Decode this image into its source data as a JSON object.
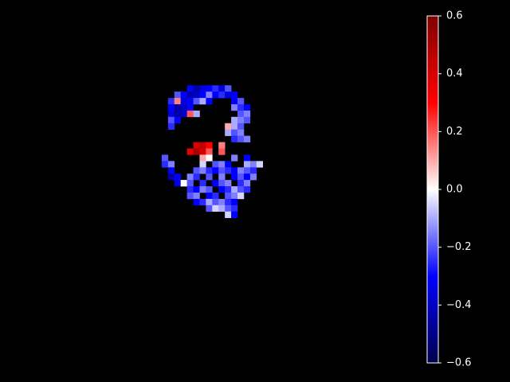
{
  "chart_data": {
    "type": "heatmap",
    "xlim": [
      0,
      55
    ],
    "ylim": [
      0,
      55
    ],
    "clim": [
      -0.6,
      0.6
    ],
    "cticks": [
      {
        "value": -0.6,
        "label": "−0.6"
      },
      {
        "value": -0.4,
        "label": "−0.4"
      },
      {
        "value": -0.2,
        "label": "−0.2"
      },
      {
        "value": 0,
        "label": "0.0"
      },
      0.2,
      0.4,
      0.6
    ],
    "cells": [
      {
        "x": 19,
        "y": 11,
        "value": -0.3
      },
      {
        "x": 20,
        "y": 11,
        "value": -0.45
      },
      {
        "x": 21,
        "y": 11,
        "value": -0.35
      },
      {
        "x": 22,
        "y": 11,
        "value": -0.3
      },
      {
        "x": 23,
        "y": 11,
        "value": -0.25
      },
      {
        "x": 24,
        "y": 11,
        "value": -0.35
      },
      {
        "x": 25,
        "y": 11,
        "value": -0.2
      },
      {
        "x": 17,
        "y": 12,
        "value": -0.2
      },
      {
        "x": 18,
        "y": 12,
        "value": -0.3
      },
      {
        "x": 19,
        "y": 12,
        "value": -0.45
      },
      {
        "x": 20,
        "y": 12,
        "value": -0.4
      },
      {
        "x": 21,
        "y": 12,
        "value": -0.3
      },
      {
        "x": 22,
        "y": 12,
        "value": -0.15
      },
      {
        "x": 23,
        "y": 12,
        "value": -0.3
      },
      {
        "x": 24,
        "y": 12,
        "value": -0.25
      },
      {
        "x": 25,
        "y": 12,
        "value": -0.35
      },
      {
        "x": 26,
        "y": 12,
        "value": -0.3
      },
      {
        "x": 16,
        "y": 13,
        "value": -0.25
      },
      {
        "x": 17,
        "y": 13,
        "value": 0.15
      },
      {
        "x": 18,
        "y": 13,
        "value": -0.35
      },
      {
        "x": 19,
        "y": 13,
        "value": -0.3
      },
      {
        "x": 20,
        "y": 13,
        "value": -0.2
      },
      {
        "x": 21,
        "y": 13,
        "value": -0.1
      },
      {
        "x": 22,
        "y": 13,
        "value": -0.3
      },
      {
        "x": 26,
        "y": 13,
        "value": -0.3
      },
      {
        "x": 27,
        "y": 13,
        "value": -0.2
      },
      {
        "x": 16,
        "y": 14,
        "value": -0.3
      },
      {
        "x": 17,
        "y": 14,
        "value": -0.45
      },
      {
        "x": 18,
        "y": 14,
        "value": -0.4
      },
      {
        "x": 19,
        "y": 14,
        "value": -0.3
      },
      {
        "x": 26,
        "y": 14,
        "value": -0.15
      },
      {
        "x": 27,
        "y": 14,
        "value": -0.25
      },
      {
        "x": 28,
        "y": 14,
        "value": -0.3
      },
      {
        "x": 16,
        "y": 15,
        "value": -0.35
      },
      {
        "x": 17,
        "y": 15,
        "value": -0.45
      },
      {
        "x": 18,
        "y": 15,
        "value": -0.4
      },
      {
        "x": 19,
        "y": 15,
        "value": 0.2
      },
      {
        "x": 20,
        "y": 15,
        "value": -0.1
      },
      {
        "x": 27,
        "y": 15,
        "value": -0.2
      },
      {
        "x": 28,
        "y": 15,
        "value": -0.15
      },
      {
        "x": 16,
        "y": 16,
        "value": -0.2
      },
      {
        "x": 17,
        "y": 16,
        "value": -0.3
      },
      {
        "x": 26,
        "y": 16,
        "value": -0.1
      },
      {
        "x": 27,
        "y": 16,
        "value": -0.15
      },
      {
        "x": 28,
        "y": 16,
        "value": -0.2
      },
      {
        "x": 16,
        "y": 17,
        "value": -0.25
      },
      {
        "x": 25,
        "y": 17,
        "value": 0.1
      },
      {
        "x": 26,
        "y": 17,
        "value": -0.1
      },
      {
        "x": 27,
        "y": 17,
        "value": -0.2
      },
      {
        "x": 25,
        "y": 18,
        "value": -0.1
      },
      {
        "x": 26,
        "y": 18,
        "value": -0.2
      },
      {
        "x": 27,
        "y": 18,
        "value": -0.15
      },
      {
        "x": 26,
        "y": 19,
        "value": -0.25
      },
      {
        "x": 27,
        "y": 19,
        "value": -0.2
      },
      {
        "x": 28,
        "y": 19,
        "value": -0.15
      },
      {
        "x": 20,
        "y": 20,
        "value": 0.4
      },
      {
        "x": 21,
        "y": 20,
        "value": 0.45
      },
      {
        "x": 22,
        "y": 20,
        "value": 0.3
      },
      {
        "x": 24,
        "y": 20,
        "value": 0.15
      },
      {
        "x": 19,
        "y": 21,
        "value": 0.35
      },
      {
        "x": 20,
        "y": 21,
        "value": 0.5
      },
      {
        "x": 21,
        "y": 21,
        "value": 0.4
      },
      {
        "x": 22,
        "y": 21,
        "value": 0.2
      },
      {
        "x": 24,
        "y": 21,
        "value": 0.2
      },
      {
        "x": 15,
        "y": 22,
        "value": -0.2
      },
      {
        "x": 21,
        "y": 22,
        "value": 0.1
      },
      {
        "x": 22,
        "y": 22,
        "value": 0
      },
      {
        "x": 26,
        "y": 22,
        "value": -0.15
      },
      {
        "x": 28,
        "y": 22,
        "value": -0.3
      },
      {
        "x": 15,
        "y": 23,
        "value": -0.25
      },
      {
        "x": 16,
        "y": 23,
        "value": -0.15
      },
      {
        "x": 21,
        "y": 23,
        "value": -0.05
      },
      {
        "x": 23,
        "y": 23,
        "value": -0.2
      },
      {
        "x": 24,
        "y": 23,
        "value": -0.15
      },
      {
        "x": 25,
        "y": 23,
        "value": -0.3
      },
      {
        "x": 28,
        "y": 23,
        "value": -0.1
      },
      {
        "x": 29,
        "y": 23,
        "value": -0.15
      },
      {
        "x": 30,
        "y": 23,
        "value": -0.05
      },
      {
        "x": 16,
        "y": 24,
        "value": -0.3
      },
      {
        "x": 20,
        "y": 24,
        "value": -0.2
      },
      {
        "x": 21,
        "y": 24,
        "value": -0.15
      },
      {
        "x": 22,
        "y": 24,
        "value": -0.25
      },
      {
        "x": 23,
        "y": 24,
        "value": -0.3
      },
      {
        "x": 24,
        "y": 24,
        "value": -0.2
      },
      {
        "x": 25,
        "y": 24,
        "value": -0.25
      },
      {
        "x": 26,
        "y": 24,
        "value": -0.3
      },
      {
        "x": 27,
        "y": 24,
        "value": -0.15
      },
      {
        "x": 28,
        "y": 24,
        "value": -0.2
      },
      {
        "x": 29,
        "y": 24,
        "value": -0.25
      },
      {
        "x": 16,
        "y": 25,
        "value": -0.45
      },
      {
        "x": 17,
        "y": 25,
        "value": -0.3
      },
      {
        "x": 19,
        "y": 25,
        "value": -0.15
      },
      {
        "x": 20,
        "y": 25,
        "value": -0.25
      },
      {
        "x": 22,
        "y": 25,
        "value": -0.2
      },
      {
        "x": 24,
        "y": 25,
        "value": -0.15
      },
      {
        "x": 26,
        "y": 25,
        "value": -0.3
      },
      {
        "x": 27,
        "y": 25,
        "value": -0.2
      },
      {
        "x": 28,
        "y": 25,
        "value": -0.3
      },
      {
        "x": 29,
        "y": 25,
        "value": -0.15
      },
      {
        "x": 17,
        "y": 26,
        "value": -0.35
      },
      {
        "x": 18,
        "y": 26,
        "value": 0
      },
      {
        "x": 19,
        "y": 26,
        "value": -0.2
      },
      {
        "x": 21,
        "y": 26,
        "value": -0.25
      },
      {
        "x": 23,
        "y": 26,
        "value": -0.3
      },
      {
        "x": 24,
        "y": 26,
        "value": -0.2
      },
      {
        "x": 25,
        "y": 26,
        "value": -0.15
      },
      {
        "x": 27,
        "y": 26,
        "value": -0.25
      },
      {
        "x": 28,
        "y": 26,
        "value": -0.15
      },
      {
        "x": 19,
        "y": 27,
        "value": -0.25
      },
      {
        "x": 20,
        "y": 27,
        "value": -0.3
      },
      {
        "x": 21,
        "y": 27,
        "value": -0.15
      },
      {
        "x": 22,
        "y": 27,
        "value": -0.2
      },
      {
        "x": 24,
        "y": 27,
        "value": -0.3
      },
      {
        "x": 25,
        "y": 27,
        "value": -0.25
      },
      {
        "x": 26,
        "y": 27,
        "value": -0.1
      },
      {
        "x": 27,
        "y": 27,
        "value": -0.2
      },
      {
        "x": 28,
        "y": 27,
        "value": -0.25
      },
      {
        "x": 19,
        "y": 28,
        "value": -0.2
      },
      {
        "x": 20,
        "y": 28,
        "value": -0.15
      },
      {
        "x": 22,
        "y": 28,
        "value": -0.3
      },
      {
        "x": 23,
        "y": 28,
        "value": -0.25
      },
      {
        "x": 25,
        "y": 28,
        "value": -0.2
      },
      {
        "x": 26,
        "y": 28,
        "value": -0.15
      },
      {
        "x": 27,
        "y": 28,
        "value": -0.05
      },
      {
        "x": 20,
        "y": 29,
        "value": -0.3
      },
      {
        "x": 21,
        "y": 29,
        "value": -0.25
      },
      {
        "x": 22,
        "y": 29,
        "value": -0.1
      },
      {
        "x": 23,
        "y": 29,
        "value": -0.2
      },
      {
        "x": 24,
        "y": 29,
        "value": -0.15
      },
      {
        "x": 25,
        "y": 29,
        "value": -0.25
      },
      {
        "x": 26,
        "y": 29,
        "value": -0.3
      },
      {
        "x": 22,
        "y": 30,
        "value": -0.2
      },
      {
        "x": 23,
        "y": 30,
        "value": -0.05
      },
      {
        "x": 24,
        "y": 30,
        "value": -0.1
      },
      {
        "x": 25,
        "y": 30,
        "value": -0.2
      },
      {
        "x": 26,
        "y": 30,
        "value": -0.25
      },
      {
        "x": 25,
        "y": 31,
        "value": -0.05
      },
      {
        "x": 26,
        "y": 31,
        "value": -0.3
      }
    ]
  }
}
